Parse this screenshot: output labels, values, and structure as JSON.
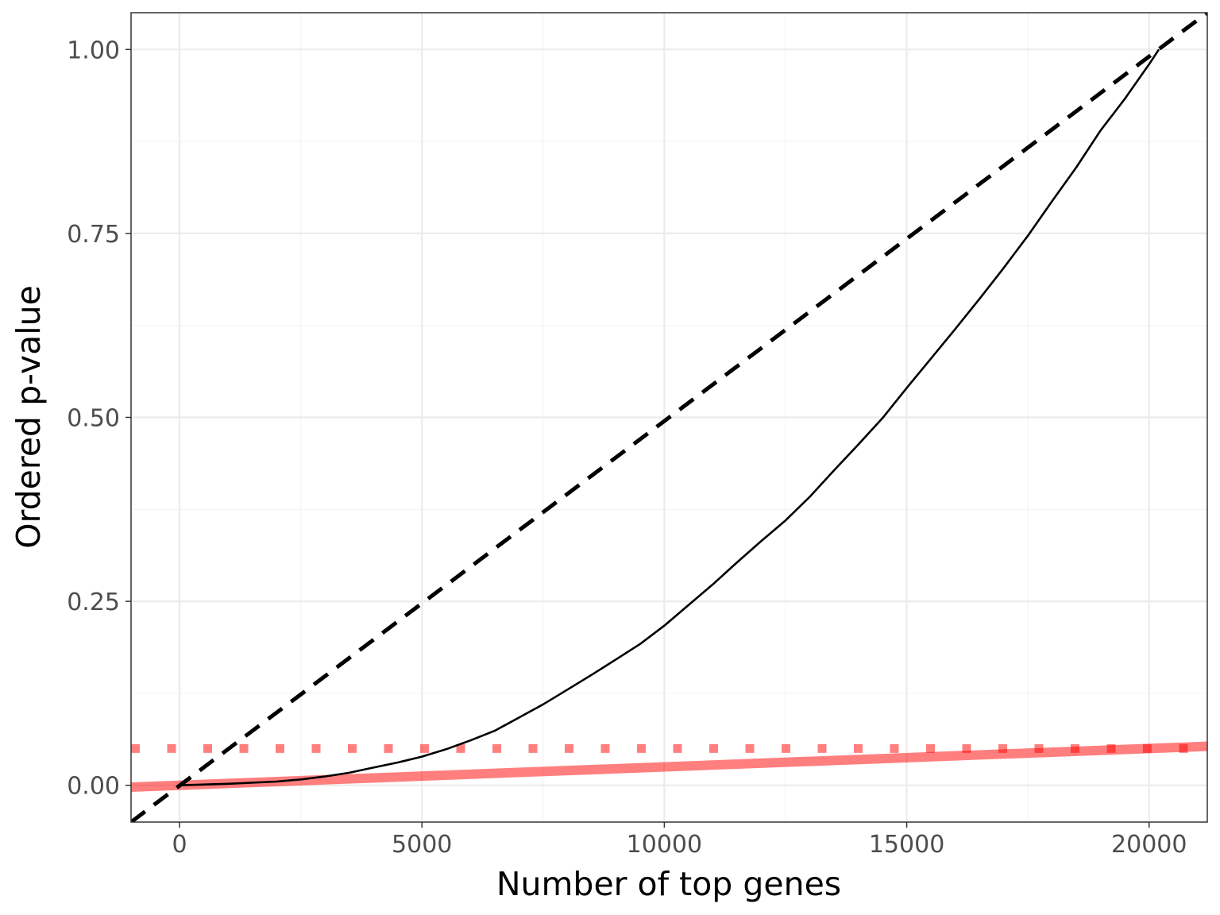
{
  "chart_data": {
    "type": "line",
    "title": "",
    "xlabel": "Number of top genes",
    "ylabel": "Ordered p-value",
    "xlim": [
      -1000,
      21200
    ],
    "ylim": [
      -0.05,
      1.05
    ],
    "x_ticks": [
      0,
      5000,
      10000,
      15000,
      20000
    ],
    "x_tick_labels": [
      "0",
      "5000",
      "10000",
      "15000",
      "20000"
    ],
    "y_ticks": [
      0,
      0.25,
      0.5,
      0.75,
      1
    ],
    "y_tick_labels": [
      "0.00",
      "0.25",
      "0.50",
      "0.75",
      "1.00"
    ],
    "grid": true,
    "legend": "none",
    "series": [
      {
        "style": "solid-black",
        "color": "#000000",
        "x": [
          0,
          1000,
          2000,
          2500,
          3000,
          3500,
          4000,
          4500,
          5000,
          5500,
          6000,
          6500,
          7000,
          7500,
          8000,
          8500,
          9000,
          9500,
          10000,
          10500,
          11000,
          11500,
          12000,
          12500,
          13000,
          13500,
          14000,
          14500,
          15000,
          15500,
          16000,
          16500,
          17000,
          17500,
          18000,
          18500,
          19000,
          19500,
          20000,
          20200
        ],
        "y": [
          0.0,
          0.002,
          0.005,
          0.008,
          0.012,
          0.017,
          0.024,
          0.031,
          0.039,
          0.049,
          0.061,
          0.074,
          0.092,
          0.11,
          0.13,
          0.15,
          0.171,
          0.192,
          0.217,
          0.245,
          0.273,
          0.303,
          0.332,
          0.36,
          0.392,
          0.428,
          0.463,
          0.499,
          0.54,
          0.58,
          0.62,
          0.661,
          0.703,
          0.747,
          0.794,
          0.84,
          0.89,
          0.933,
          0.98,
          1.0
        ]
      },
      {
        "style": "dashed-black",
        "color": "#000000",
        "x": [
          -1000,
          21200
        ],
        "y": [
          -0.05,
          1.05
        ]
      },
      {
        "style": "thick-solid-red",
        "color": "#ff0000",
        "opacity": 0.5,
        "x": [
          -1000,
          21200
        ],
        "y": [
          -0.0025,
          0.053
        ]
      },
      {
        "style": "dotted-red",
        "color": "#ff0000",
        "opacity": 0.5,
        "x": [
          -1000,
          21200
        ],
        "y": [
          0.05,
          0.05
        ]
      }
    ]
  }
}
